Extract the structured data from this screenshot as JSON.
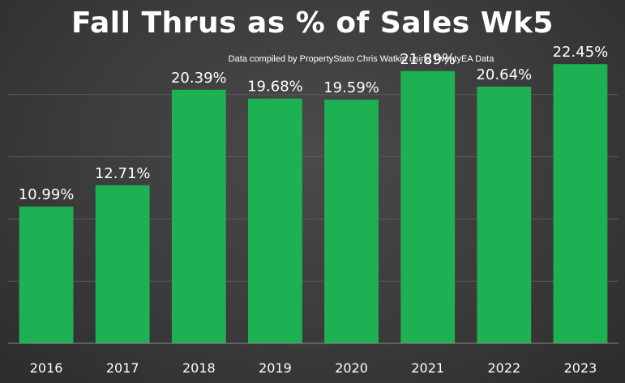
{
  "chart_data": {
    "type": "bar",
    "title": "Fall Thrus as % of Sales Wk5",
    "subtitle": "Data compiled by PropertyStato Chris Watkin using TwentyEA Data",
    "categories": [
      "2016",
      "2017",
      "2018",
      "2019",
      "2020",
      "2021",
      "2022",
      "2023"
    ],
    "values": [
      10.99,
      12.71,
      20.39,
      19.68,
      19.59,
      21.89,
      20.64,
      22.45
    ],
    "value_labels": [
      "10.99%",
      "12.71%",
      "20.39%",
      "19.68%",
      "19.59%",
      "21.89%",
      "20.64%",
      "22.45%"
    ],
    "xlabel": "",
    "ylabel": "",
    "ylim": [
      0,
      25
    ],
    "grid": true,
    "legend": "none",
    "colors": {
      "bar": "#1db153",
      "gridline": "#5a5a5a",
      "axis": "#8a8a8a",
      "text": "#ffffff"
    }
  }
}
